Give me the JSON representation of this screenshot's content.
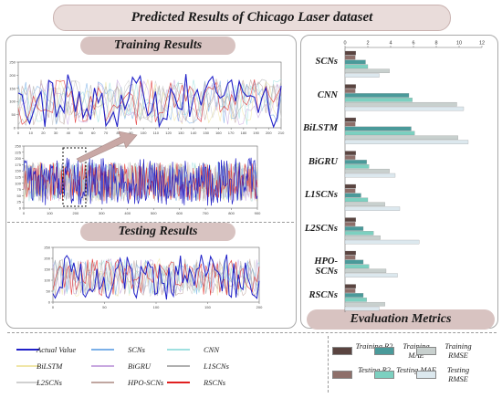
{
  "header": {
    "title": "Predicted Results of Chicago Laser dataset"
  },
  "sections": {
    "training": "Training Results",
    "testing": "Testing Results",
    "evaluation": "Evaluation Metrics"
  },
  "colors": {
    "actual": "#2020c8",
    "scns": "#7bb0e8",
    "cnn": "#9fe0e0",
    "bilstm": "#f0e6a8",
    "bigru": "#c8a8e0",
    "l1scns": "#b0b0b0",
    "l2scns": "#d0d0d0",
    "hposcns": "#c0a6a0",
    "rscns": "#e02020",
    "training_r2": "#5a4440",
    "testing_r2": "#8e6f6a",
    "training_mae": "#4a9a9a",
    "testing_mae": "#7cd0c0",
    "training_rmse": "#c8d0ce",
    "testing_rmse": "#dce8ee"
  },
  "chart_data": [
    {
      "type": "line",
      "name": "training-zoom",
      "x_ticks": [
        "0",
        "10",
        "20",
        "30",
        "40",
        "50",
        "60",
        "70",
        "80",
        "90",
        "100",
        "110",
        "120",
        "130",
        "140",
        "150",
        "160",
        "170",
        "180",
        "190",
        "200",
        "210"
      ],
      "y_ticks": [
        "0",
        "50",
        "100",
        "150",
        "200",
        "250"
      ],
      "xlim": [
        0,
        210
      ],
      "ylim": [
        0,
        250
      ]
    },
    {
      "type": "line",
      "name": "training-full",
      "x_ticks": [
        "0",
        "100",
        "200",
        "300",
        "400",
        "500",
        "600",
        "700",
        "800",
        "900"
      ],
      "y_ticks": [
        "0",
        "25",
        "50",
        "75",
        "100",
        "125",
        "150",
        "175",
        "200",
        "225",
        "250"
      ],
      "xlim": [
        0,
        900
      ],
      "ylim": [
        0,
        250
      ]
    },
    {
      "type": "line",
      "name": "testing",
      "x_ticks": [
        "0",
        "50",
        "100",
        "150",
        "200"
      ],
      "y_ticks": [
        "0",
        "50",
        "100",
        "150",
        "200",
        "250"
      ],
      "xlim": [
        0,
        200
      ],
      "ylim": [
        0,
        250
      ]
    },
    {
      "type": "bar",
      "orientation": "horizontal",
      "name": "evaluation-metrics",
      "categories": [
        "SCNs",
        "CNN",
        "BiLSTM",
        "BiGRU",
        "L1SCNs",
        "L2SCNs",
        "HPO-SCNs",
        "RSCNs"
      ],
      "x_ticks": [
        "0",
        "2",
        "4",
        "6",
        "8",
        "10",
        "12"
      ],
      "xlim": [
        0,
        12
      ],
      "series": [
        {
          "name": "Training R2",
          "values": [
            0.95,
            0.95,
            0.95,
            0.95,
            0.95,
            0.95,
            0.95,
            0.95
          ]
        },
        {
          "name": "Testing R2",
          "values": [
            0.9,
            0.9,
            0.9,
            0.9,
            0.9,
            0.9,
            0.9,
            0.9
          ]
        },
        {
          "name": "Training MAE",
          "values": [
            1.8,
            5.6,
            5.8,
            1.9,
            1.4,
            1.6,
            1.6,
            1.6
          ]
        },
        {
          "name": "Testing MAE",
          "values": [
            2.0,
            5.9,
            6.1,
            2.1,
            2.0,
            2.5,
            2.1,
            1.9
          ]
        },
        {
          "name": "Training RMSE",
          "values": [
            3.9,
            9.8,
            9.9,
            3.9,
            3.5,
            3.1,
            3.6,
            3.5
          ]
        },
        {
          "name": "Testing RMSE",
          "values": [
            3.0,
            10.4,
            10.8,
            4.4,
            4.8,
            6.5,
            4.6,
            3.0
          ]
        }
      ]
    }
  ],
  "legend_left": [
    {
      "label": "Actual Value",
      "color_key": "actual"
    },
    {
      "label": "SCNs",
      "color_key": "scns"
    },
    {
      "label": "CNN",
      "color_key": "cnn"
    },
    {
      "label": "BiLSTM",
      "color_key": "bilstm"
    },
    {
      "label": "BiGRU",
      "color_key": "bigru"
    },
    {
      "label": "L1SCNs",
      "color_key": "l1scns"
    },
    {
      "label": "L2SCNs",
      "color_key": "l2scns"
    },
    {
      "label": "HPO-SCNs",
      "color_key": "hposcns"
    },
    {
      "label": "RSCNs",
      "color_key": "rscns"
    }
  ],
  "legend_right": [
    {
      "label": "Training R2",
      "color_key": "training_r2"
    },
    {
      "label": "Training MAE",
      "color_key": "training_mae"
    },
    {
      "label": "Training RMSE",
      "color_key": "training_rmse"
    },
    {
      "label": "Testing R2",
      "color_key": "testing_r2"
    },
    {
      "label": "Testing MAE",
      "color_key": "testing_mae"
    },
    {
      "label": "Testing RMSE",
      "color_key": "testing_rmse"
    }
  ]
}
